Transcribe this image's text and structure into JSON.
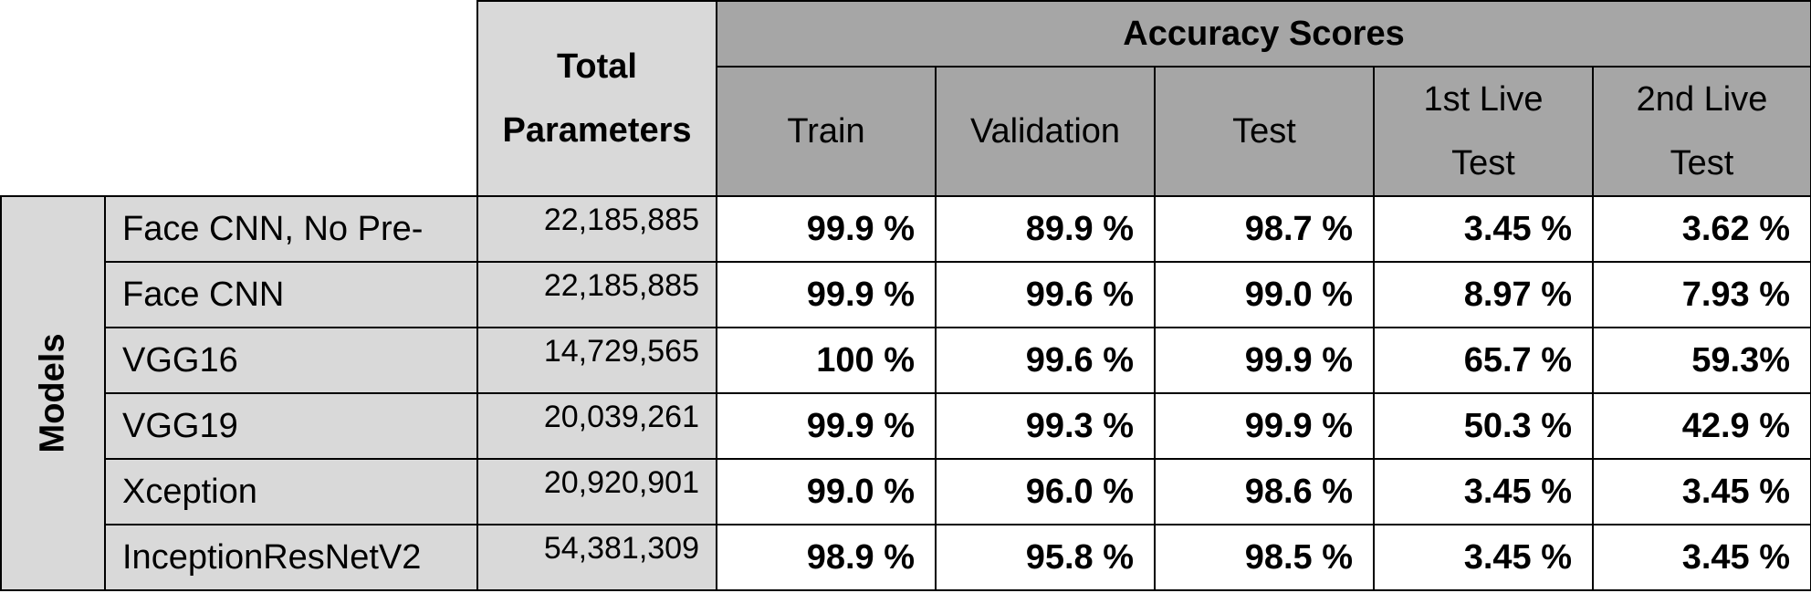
{
  "table": {
    "params_header_line1": "Total",
    "params_header_line2": "Parameters",
    "accuracy_header": "Accuracy Scores",
    "columns": [
      {
        "line1": "Train",
        "line2": ""
      },
      {
        "line1": "Validation",
        "line2": ""
      },
      {
        "line1": "Test",
        "line2": ""
      },
      {
        "line1": "1st Live",
        "line2": "Test"
      },
      {
        "line1": "2nd Live",
        "line2": "Test"
      }
    ],
    "row_group_label": "Models",
    "rows": [
      {
        "model": "Face CNN, No Pre-",
        "params": "22,185,885",
        "scores": [
          "99.9 %",
          "89.9 %",
          "98.7 %",
          "3.45 %",
          "3.62 %"
        ]
      },
      {
        "model": "Face CNN",
        "params": "22,185,885",
        "scores": [
          "99.9 %",
          "99.6 %",
          "99.0 %",
          "8.97 %",
          "7.93 %"
        ]
      },
      {
        "model": "VGG16",
        "params": "14,729,565",
        "scores": [
          "100 %",
          "99.6 %",
          "99.9 %",
          "65.7 %",
          "59.3%"
        ]
      },
      {
        "model": "VGG19",
        "params": "20,039,261",
        "scores": [
          "99.9 %",
          "99.3 %",
          "99.9 %",
          "50.3 %",
          "42.9 %"
        ]
      },
      {
        "model": "Xception",
        "params": "20,920,901",
        "scores": [
          "99.0 %",
          "96.0 %",
          "98.6 %",
          "3.45 %",
          "3.45 %"
        ]
      },
      {
        "model": "InceptionResNetV2",
        "params": "54,381,309",
        "scores": [
          "98.9 %",
          "95.8 %",
          "98.5 %",
          "3.45 %",
          "3.45 %"
        ]
      }
    ]
  }
}
